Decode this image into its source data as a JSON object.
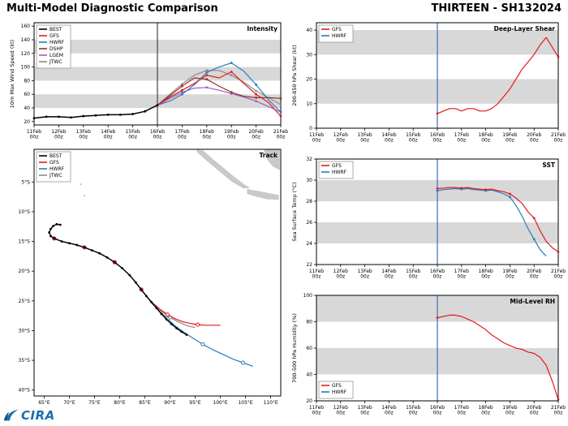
{
  "header": {
    "title": "Multi-Model Diagnostic Comparison",
    "storm": "THIRTEEN - SH132024"
  },
  "logo": {
    "text": "CIRA"
  },
  "time_axis": {
    "values": [
      11,
      12,
      13,
      14,
      15,
      16,
      17,
      18,
      19,
      20,
      21
    ],
    "labels": [
      "11Feb 00z",
      "12Feb 00z",
      "13Feb 00z",
      "14Feb 00z",
      "15Feb 00z",
      "16Feb 00z",
      "17Feb 00z",
      "18Feb 00z",
      "19Feb 00z",
      "20Feb 00z",
      "21Feb 00z"
    ]
  },
  "chart_data": [
    {
      "id": "intensity",
      "type": "line",
      "title": "Intensity",
      "ylabel": "10m Max Wind Speed (kt)",
      "xlim": [
        11,
        21
      ],
      "ylim": [
        15,
        165
      ],
      "xticks": "time",
      "yticks": {
        "values": [
          20,
          40,
          60,
          80,
          100,
          120,
          140,
          160
        ]
      },
      "bands": [
        [
          40,
          60
        ],
        [
          80,
          100
        ],
        [
          120,
          140
        ]
      ],
      "band_color": "#d8d8d8",
      "vline": {
        "x": 16,
        "color": "#444444"
      },
      "legend": {
        "pos": "tl",
        "entries": [
          {
            "label": "BEST",
            "color": "#000000"
          },
          {
            "label": "GFS",
            "color": "#e41a1c"
          },
          {
            "label": "HWRF",
            "color": "#2b7bba"
          },
          {
            "label": "DSHP",
            "color": "#8b3626"
          },
          {
            "label": "LGEM",
            "color": "#9a5fc0"
          },
          {
            "label": "JTWC",
            "color": "#8c8c8c"
          }
        ]
      },
      "series": [
        {
          "name": "JTWC",
          "color": "#8c8c8c",
          "marker": "dot",
          "marker_every": 2,
          "x": [
            16,
            16.5,
            17,
            17.5,
            18,
            18.5,
            19,
            19.5,
            20,
            20.5,
            21
          ],
          "y": [
            44,
            60,
            75,
            88,
            95,
            95,
            88,
            78,
            65,
            55,
            45
          ]
        },
        {
          "name": "LGEM",
          "color": "#9a5fc0",
          "marker": "dot",
          "marker_every": 2,
          "x": [
            16,
            16.5,
            17,
            17.5,
            18,
            18.5,
            19,
            19.5,
            20,
            20.5,
            21
          ],
          "y": [
            44,
            54,
            63,
            69,
            70,
            66,
            61,
            56,
            50,
            42,
            34
          ]
        },
        {
          "name": "DSHP",
          "color": "#8b3626",
          "marker": "dot",
          "marker_every": 2,
          "x": [
            16,
            16.5,
            17,
            17.5,
            18,
            18.5,
            19,
            19.5,
            20,
            20.5,
            21
          ],
          "y": [
            44,
            58,
            72,
            84,
            82,
            72,
            63,
            57,
            55,
            55,
            54
          ]
        },
        {
          "name": "HWRF",
          "color": "#2b7bba",
          "marker": "dot",
          "marker_every": 2,
          "x": [
            16,
            16.5,
            17,
            17.5,
            18,
            18.5,
            19,
            19.5,
            20,
            20.5,
            21
          ],
          "y": [
            44,
            50,
            60,
            74,
            92,
            100,
            106,
            94,
            74,
            52,
            34
          ]
        },
        {
          "name": "GFS",
          "color": "#e41a1c",
          "marker": "dot",
          "marker_every": 2,
          "x": [
            16,
            16.5,
            17,
            17.5,
            18,
            18.5,
            19,
            19.5,
            20,
            20.5,
            21
          ],
          "y": [
            44,
            56,
            66,
            76,
            88,
            84,
            93,
            76,
            60,
            48,
            28
          ]
        },
        {
          "name": "BEST",
          "color": "#000000",
          "width": 1.5,
          "marker": "dot",
          "marker_every": 1,
          "x": [
            11,
            11.5,
            12,
            12.5,
            13,
            13.5,
            14,
            14.5,
            15,
            15.5,
            16
          ],
          "y": [
            25,
            27,
            27,
            26,
            28,
            29,
            30,
            30,
            31,
            35,
            44
          ]
        }
      ]
    },
    {
      "id": "track",
      "type": "scatter",
      "title": "Track",
      "ylabel": "",
      "xlim": [
        63,
        112
      ],
      "ylim": [
        -41,
        0.5
      ],
      "xticks": {
        "values": [
          65,
          70,
          75,
          80,
          85,
          90,
          95,
          100,
          105,
          110
        ],
        "labels": [
          "65°E",
          "70°E",
          "75°E",
          "80°E",
          "85°E",
          "90°E",
          "95°E",
          "100°E",
          "105°E",
          "110°E"
        ]
      },
      "yticks": {
        "values": [
          -5,
          -10,
          -15,
          -20,
          -25,
          -30,
          -35,
          -40
        ],
        "labels": [
          "5°S",
          "10°S",
          "15°S",
          "20°S",
          "25°S",
          "30°S",
          "35°S",
          "40°S"
        ]
      },
      "legend": {
        "pos": "tl",
        "entries": [
          {
            "label": "BEST",
            "color": "#000000"
          },
          {
            "label": "GFS",
            "color": "#e41a1c"
          },
          {
            "label": "HWRF",
            "color": "#2b7bba"
          },
          {
            "label": "JTWC",
            "color": "#8c8c8c"
          }
        ]
      },
      "land": [
        [
          [
            95.2,
            0.5
          ],
          [
            96.6,
            0.3
          ],
          [
            98.6,
            -1.2
          ],
          [
            100.6,
            -2.6
          ],
          [
            102.6,
            -4.0
          ],
          [
            104.6,
            -5.3
          ],
          [
            105.9,
            -6.0
          ],
          [
            104.6,
            -6.1
          ],
          [
            102.2,
            -4.9
          ],
          [
            99.8,
            -3.2
          ],
          [
            97.4,
            -1.5
          ],
          [
            95.4,
            0.0
          ]
        ],
        [
          [
            105.3,
            -6.2
          ],
          [
            107.5,
            -6.5
          ],
          [
            109.8,
            -6.9
          ],
          [
            111.6,
            -7.2
          ],
          [
            111.6,
            -8.0
          ],
          [
            109.2,
            -7.9
          ],
          [
            106.8,
            -7.4
          ],
          [
            105.3,
            -7.0
          ]
        ],
        [
          [
            108.6,
            0.5
          ],
          [
            111.8,
            0.5
          ],
          [
            111.8,
            -3.0
          ],
          [
            110.4,
            -2.4
          ],
          [
            109.2,
            -1.1
          ]
        ]
      ],
      "land_dots": [
        [
          72.3,
          -5.4
        ],
        [
          73.0,
          -7.3
        ]
      ],
      "series": [
        {
          "name": "JTWC",
          "color": "#8c8c8c",
          "marker": "open",
          "marker_every": 4,
          "x": [
            67.0,
            68.5,
            70.0,
            71.5,
            73.0,
            74.5,
            76.0,
            77.5,
            79.0,
            80.5,
            82.0,
            83.2,
            84.3,
            85.3,
            86.5,
            88.2,
            90.0,
            91.8,
            93.5,
            95.0
          ],
          "y": [
            -14.5,
            -15.0,
            -15.3,
            -15.6,
            -16.0,
            -16.5,
            -17.0,
            -17.7,
            -18.5,
            -19.5,
            -20.7,
            -21.9,
            -23.1,
            -24.2,
            -25.4,
            -26.7,
            -27.8,
            -28.6,
            -29.2,
            -29.5
          ]
        },
        {
          "name": "HWRF",
          "color": "#2b7bba",
          "marker": "open",
          "marker_every": 4,
          "x": [
            67.0,
            68.5,
            70.0,
            71.5,
            73.0,
            74.5,
            76.0,
            77.5,
            79.0,
            80.5,
            82.0,
            83.2,
            84.3,
            85.3,
            86.5,
            88.0,
            89.5,
            91.0,
            92.8,
            94.6,
            96.5,
            98.5,
            100.5,
            102.5,
            104.5,
            106.5
          ],
          "y": [
            -14.5,
            -15.0,
            -15.3,
            -15.6,
            -16.0,
            -16.5,
            -17.0,
            -17.7,
            -18.5,
            -19.5,
            -20.7,
            -21.9,
            -23.1,
            -24.2,
            -25.5,
            -26.8,
            -28.0,
            -29.2,
            -30.3,
            -31.3,
            -32.3,
            -33.2,
            -34.0,
            -34.8,
            -35.4,
            -36.0
          ]
        },
        {
          "name": "GFS",
          "color": "#e41a1c",
          "marker": "open",
          "marker_every": 4,
          "x": [
            67.0,
            68.5,
            70.0,
            71.5,
            73.0,
            74.5,
            76.0,
            77.5,
            79.0,
            80.5,
            82.0,
            83.2,
            84.3,
            85.3,
            86.5,
            88.0,
            89.5,
            91.0,
            92.5,
            94.0,
            95.5,
            97.0,
            98.5,
            100.0
          ],
          "y": [
            -14.5,
            -15.0,
            -15.3,
            -15.6,
            -16.0,
            -16.5,
            -17.0,
            -17.7,
            -18.5,
            -19.5,
            -20.7,
            -21.9,
            -23.1,
            -24.2,
            -25.3,
            -26.4,
            -27.3,
            -28.0,
            -28.5,
            -28.8,
            -29.0,
            -29.1,
            -29.1,
            -29.1
          ]
        },
        {
          "name": "BEST",
          "color": "#000000",
          "width": 1.4,
          "marker": "dot",
          "marker_every": 1,
          "x": [
            68.2,
            67.5,
            66.8,
            66.3,
            66.0,
            66.3,
            67.0,
            68.5,
            70.0,
            71.5,
            73.0,
            74.5,
            76.0,
            77.5,
            79.0,
            80.5,
            82.0,
            83.2,
            84.3,
            85.3,
            86.3,
            87.3,
            88.3,
            89.3,
            90.3,
            91.3,
            92.3,
            93.3
          ],
          "y": [
            -12.2,
            -12.1,
            -12.4,
            -12.9,
            -13.5,
            -14.1,
            -14.5,
            -15.0,
            -15.3,
            -15.6,
            -16.0,
            -16.5,
            -17.0,
            -17.7,
            -18.5,
            -19.5,
            -20.7,
            -21.9,
            -23.1,
            -24.2,
            -25.2,
            -26.2,
            -27.2,
            -28.1,
            -28.9,
            -29.6,
            -30.2,
            -30.7
          ]
        }
      ]
    },
    {
      "id": "shear",
      "type": "line",
      "title": "Deep-Layer Shear",
      "ylabel": "200-850 hPa Shear (kt)",
      "xlim": [
        11,
        21
      ],
      "ylim": [
        0,
        43
      ],
      "xticks": "time",
      "yticks": {
        "values": [
          0,
          10,
          20,
          30,
          40
        ]
      },
      "bands": [
        [
          10,
          20
        ],
        [
          30,
          40
        ]
      ],
      "band_color": "#d8d8d8",
      "vline": {
        "x": 16,
        "color": "#3f6fb5"
      },
      "legend": {
        "pos": "tl",
        "entries": [
          {
            "label": "GFS",
            "color": "#e41a1c"
          },
          {
            "label": "HWRF",
            "color": "#2b7bba"
          }
        ]
      },
      "series": [
        {
          "name": "GFS",
          "color": "#e41a1c",
          "marker": "dot",
          "marker_every": 20,
          "x": [
            16,
            16.25,
            16.5,
            16.75,
            17,
            17.25,
            17.5,
            17.75,
            18,
            18.25,
            18.5,
            18.75,
            19,
            19.25,
            19.5,
            19.75,
            20,
            20.25,
            20.5,
            20.75,
            21
          ],
          "y": [
            6,
            7,
            8,
            8,
            7,
            8,
            8,
            7,
            7,
            8,
            10,
            13,
            16,
            20,
            24,
            27,
            30,
            34,
            37,
            33,
            29
          ]
        },
        {
          "name": "HWRF",
          "color": "#2b7bba",
          "x": [],
          "y": []
        }
      ]
    },
    {
      "id": "sst",
      "type": "line",
      "title": "SST",
      "ylabel": "Sea Surface Temp (°C)",
      "xlim": [
        11,
        21
      ],
      "ylim": [
        22,
        32
      ],
      "xticks": "time",
      "yticks": {
        "values": [
          22,
          24,
          26,
          28,
          30,
          32
        ]
      },
      "bands": [
        [
          24,
          26
        ],
        [
          28,
          30
        ]
      ],
      "band_color": "#d8d8d8",
      "vline": {
        "x": 16,
        "color": "#3f6fb5"
      },
      "legend": {
        "pos": "tl",
        "entries": [
          {
            "label": "GFS",
            "color": "#e41a1c"
          },
          {
            "label": "HWRF",
            "color": "#2b7bba"
          }
        ]
      },
      "series": [
        {
          "name": "HWRF",
          "color": "#2b7bba",
          "marker": "dot",
          "marker_every": 4,
          "x": [
            16,
            16.25,
            16.5,
            16.75,
            17,
            17.25,
            17.5,
            17.75,
            18,
            18.25,
            18.5,
            18.75,
            19,
            19.25,
            19.5,
            19.75,
            20,
            20.25,
            20.5
          ],
          "y": [
            29.0,
            29.1,
            29.15,
            29.2,
            29.15,
            29.2,
            29.1,
            29.05,
            29.0,
            29.05,
            28.9,
            28.7,
            28.4,
            27.6,
            26.6,
            25.4,
            24.4,
            23.4,
            22.8
          ]
        },
        {
          "name": "GFS",
          "color": "#e41a1c",
          "marker": "dot",
          "marker_every": 4,
          "x": [
            16,
            16.25,
            16.5,
            16.75,
            17,
            17.25,
            17.5,
            17.75,
            18,
            18.25,
            18.5,
            18.75,
            19,
            19.25,
            19.5,
            19.75,
            20,
            20.25,
            20.5,
            20.75,
            21
          ],
          "y": [
            29.2,
            29.25,
            29.3,
            29.3,
            29.25,
            29.3,
            29.2,
            29.15,
            29.1,
            29.15,
            29.0,
            28.9,
            28.7,
            28.3,
            27.8,
            27.0,
            26.4,
            25.2,
            24.2,
            23.6,
            23.2
          ]
        }
      ]
    },
    {
      "id": "rh",
      "type": "line",
      "title": "Mid-Level RH",
      "ylabel": "700-500 hPa Humidity (%)",
      "xlim": [
        11,
        21
      ],
      "ylim": [
        20,
        100
      ],
      "xticks": "time",
      "yticks": {
        "values": [
          20,
          40,
          60,
          80,
          100
        ]
      },
      "bands": [
        [
          40,
          60
        ],
        [
          80,
          100
        ]
      ],
      "band_color": "#d8d8d8",
      "vline": {
        "x": 16,
        "color": "#3f6fb5"
      },
      "legend": {
        "pos": "bl",
        "entries": [
          {
            "label": "GFS",
            "color": "#e41a1c"
          },
          {
            "label": "HWRF",
            "color": "#2b7bba"
          }
        ]
      },
      "series": [
        {
          "name": "GFS",
          "color": "#e41a1c",
          "marker": "dot",
          "marker_every": 20,
          "x": [
            16,
            16.25,
            16.5,
            16.75,
            17,
            17.25,
            17.5,
            17.75,
            18,
            18.25,
            18.5,
            18.75,
            19,
            19.25,
            19.5,
            19.75,
            20,
            20.25,
            20.5,
            20.75,
            21
          ],
          "y": [
            83,
            84,
            85,
            85,
            84,
            82,
            80,
            77,
            74,
            70,
            67,
            64,
            62,
            60,
            59,
            57,
            56,
            53,
            47,
            35,
            21
          ]
        },
        {
          "name": "HWRF",
          "color": "#2b7bba",
          "x": [],
          "y": []
        }
      ]
    }
  ]
}
